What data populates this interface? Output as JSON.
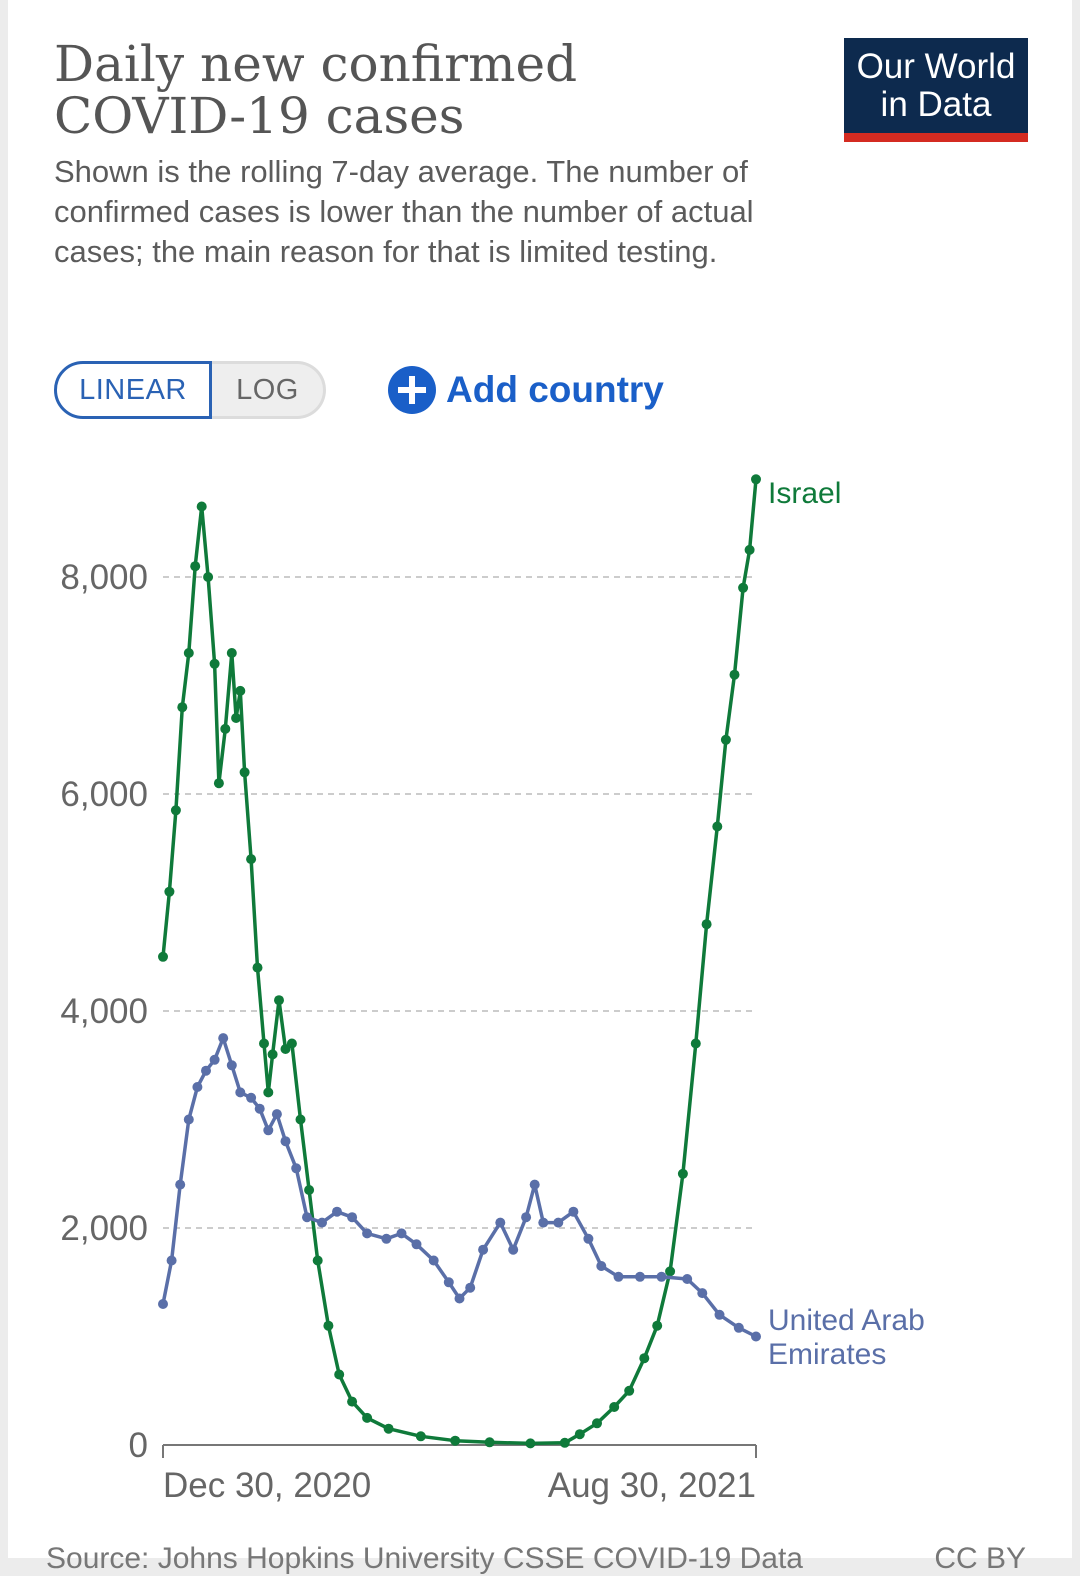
{
  "header": {
    "title_line1": "Daily new confirmed",
    "title_line2": "COVID-19 cases",
    "subtitle": "Shown is the rolling 7-day average. The number of confirmed cases is lower than the number of actual cases; the main reason for that is limited testing."
  },
  "logo": {
    "line1": "Our World",
    "line2": "in Data"
  },
  "controls": {
    "linear_label": "LINEAR",
    "log_label": "LOG",
    "add_country_label": "Add country"
  },
  "footer": {
    "source": "Source: Johns Hopkins University CSSE COVID-19 Data",
    "license": "CC BY"
  },
  "colors": {
    "israel": "#0f7a3a",
    "uae": "#5a6fa8",
    "grid": "#cccccc"
  },
  "chart_data": {
    "type": "line",
    "x_ticks": [
      "Dec 30, 2020",
      "Aug 30, 2021"
    ],
    "x_range": [
      "2020-11-30",
      "2021-09-02"
    ],
    "ylim": [
      0,
      8000
    ],
    "y_ticks": [
      0,
      2000,
      4000,
      6000,
      8000
    ],
    "y_tick_labels": [
      "0",
      "2,000",
      "4,000",
      "6,000",
      "8,000"
    ],
    "grid": "horizontal dashed",
    "series": [
      {
        "name": "Israel",
        "color": "#0f7a3a",
        "points": [
          [
            "2020-11-30",
            4500
          ],
          [
            "2020-12-03",
            5100
          ],
          [
            "2020-12-06",
            5850
          ],
          [
            "2020-12-09",
            6800
          ],
          [
            "2020-12-12",
            7300
          ],
          [
            "2020-12-15",
            8100
          ],
          [
            "2020-12-18",
            8650
          ],
          [
            "2020-12-21",
            8000
          ],
          [
            "2020-12-24",
            7200
          ],
          [
            "2020-12-26",
            6100
          ],
          [
            "2020-12-29",
            6600
          ],
          [
            "2021-01-01",
            7300
          ],
          [
            "2021-01-03",
            6700
          ],
          [
            "2021-01-05",
            6950
          ],
          [
            "2021-01-07",
            6200
          ],
          [
            "2021-01-10",
            5400
          ],
          [
            "2021-01-13",
            4400
          ],
          [
            "2021-01-16",
            3700
          ],
          [
            "2021-01-18",
            3250
          ],
          [
            "2021-01-20",
            3600
          ],
          [
            "2021-01-23",
            4100
          ],
          [
            "2021-01-26",
            3650
          ],
          [
            "2021-01-29",
            3700
          ],
          [
            "2021-02-02",
            3000
          ],
          [
            "2021-02-06",
            2350
          ],
          [
            "2021-02-10",
            1700
          ],
          [
            "2021-02-15",
            1100
          ],
          [
            "2021-02-20",
            650
          ],
          [
            "2021-02-26",
            400
          ],
          [
            "2021-03-05",
            250
          ],
          [
            "2021-03-15",
            150
          ],
          [
            "2021-03-30",
            80
          ],
          [
            "2021-04-15",
            40
          ],
          [
            "2021-05-01",
            25
          ],
          [
            "2021-05-20",
            15
          ],
          [
            "2021-06-05",
            20
          ],
          [
            "2021-06-12",
            100
          ],
          [
            "2021-06-20",
            200
          ],
          [
            "2021-06-28",
            350
          ],
          [
            "2021-07-05",
            500
          ],
          [
            "2021-07-12",
            800
          ],
          [
            "2021-07-18",
            1100
          ],
          [
            "2021-07-24",
            1600
          ],
          [
            "2021-07-30",
            2500
          ],
          [
            "2021-08-05",
            3700
          ],
          [
            "2021-08-10",
            4800
          ],
          [
            "2021-08-15",
            5700
          ],
          [
            "2021-08-19",
            6500
          ],
          [
            "2021-08-23",
            7100
          ],
          [
            "2021-08-27",
            7900
          ],
          [
            "2021-08-30",
            8250
          ],
          [
            "2021-09-02",
            8900
          ]
        ]
      },
      {
        "name": "United Arab Emirates",
        "color": "#5a6fa8",
        "points": [
          [
            "2020-11-30",
            1300
          ],
          [
            "2020-12-04",
            1700
          ],
          [
            "2020-12-08",
            2400
          ],
          [
            "2020-12-12",
            3000
          ],
          [
            "2020-12-16",
            3300
          ],
          [
            "2020-12-20",
            3450
          ],
          [
            "2020-12-24",
            3550
          ],
          [
            "2020-12-28",
            3750
          ],
          [
            "2021-01-01",
            3500
          ],
          [
            "2021-01-05",
            3250
          ],
          [
            "2021-01-10",
            3200
          ],
          [
            "2021-01-14",
            3100
          ],
          [
            "2021-01-18",
            2900
          ],
          [
            "2021-01-22",
            3050
          ],
          [
            "2021-01-26",
            2800
          ],
          [
            "2021-01-31",
            2550
          ],
          [
            "2021-02-05",
            2100
          ],
          [
            "2021-02-12",
            2050
          ],
          [
            "2021-02-19",
            2150
          ],
          [
            "2021-02-26",
            2100
          ],
          [
            "2021-03-05",
            1950
          ],
          [
            "2021-03-14",
            1900
          ],
          [
            "2021-03-21",
            1950
          ],
          [
            "2021-03-28",
            1850
          ],
          [
            "2021-04-05",
            1700
          ],
          [
            "2021-04-12",
            1500
          ],
          [
            "2021-04-17",
            1350
          ],
          [
            "2021-04-22",
            1450
          ],
          [
            "2021-04-28",
            1800
          ],
          [
            "2021-05-06",
            2050
          ],
          [
            "2021-05-12",
            1800
          ],
          [
            "2021-05-18",
            2100
          ],
          [
            "2021-05-22",
            2400
          ],
          [
            "2021-05-26",
            2050
          ],
          [
            "2021-06-02",
            2050
          ],
          [
            "2021-06-09",
            2150
          ],
          [
            "2021-06-16",
            1900
          ],
          [
            "2021-06-22",
            1650
          ],
          [
            "2021-06-30",
            1550
          ],
          [
            "2021-07-10",
            1550
          ],
          [
            "2021-07-20",
            1550
          ],
          [
            "2021-08-01",
            1530
          ],
          [
            "2021-08-08",
            1400
          ],
          [
            "2021-08-16",
            1200
          ],
          [
            "2021-08-25",
            1080
          ],
          [
            "2021-09-02",
            1000
          ]
        ]
      }
    ]
  }
}
